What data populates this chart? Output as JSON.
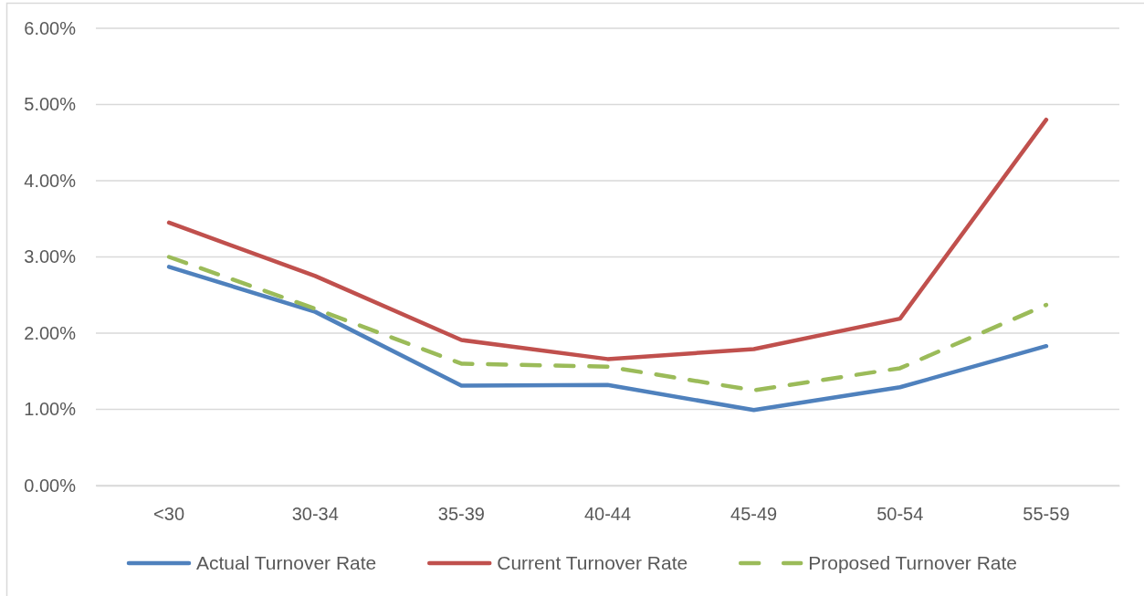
{
  "chart_data": {
    "type": "line",
    "categories": [
      "<30",
      "30-34",
      "35-39",
      "40-44",
      "45-49",
      "50-54",
      "55-59"
    ],
    "series": [
      {
        "name": "Actual Turnover Rate",
        "color": "#4f81bd",
        "values": [
          2.87,
          2.28,
          1.31,
          1.32,
          0.99,
          1.29,
          1.83
        ]
      },
      {
        "name": "Current Turnover Rate",
        "color": "#c0504d",
        "values": [
          3.45,
          2.75,
          1.91,
          1.66,
          1.79,
          2.19,
          4.8
        ]
      },
      {
        "name": "Proposed Turnover Rate",
        "color": "#9bbb59",
        "line_style": "dashed",
        "values": [
          3.0,
          2.32,
          1.6,
          1.56,
          1.25,
          1.54,
          2.37
        ]
      }
    ],
    "ylim": [
      0,
      6
    ],
    "yticks": [
      {
        "value": 0,
        "label": "0.00%"
      },
      {
        "value": 1,
        "label": "1.00%"
      },
      {
        "value": 2,
        "label": "2.00%"
      },
      {
        "value": 3,
        "label": "3.00%"
      },
      {
        "value": 4,
        "label": "4.00%"
      },
      {
        "value": 5,
        "label": "5.00%"
      },
      {
        "value": 6,
        "label": "6.00%"
      }
    ],
    "grid": "y",
    "legend": "bottom"
  }
}
